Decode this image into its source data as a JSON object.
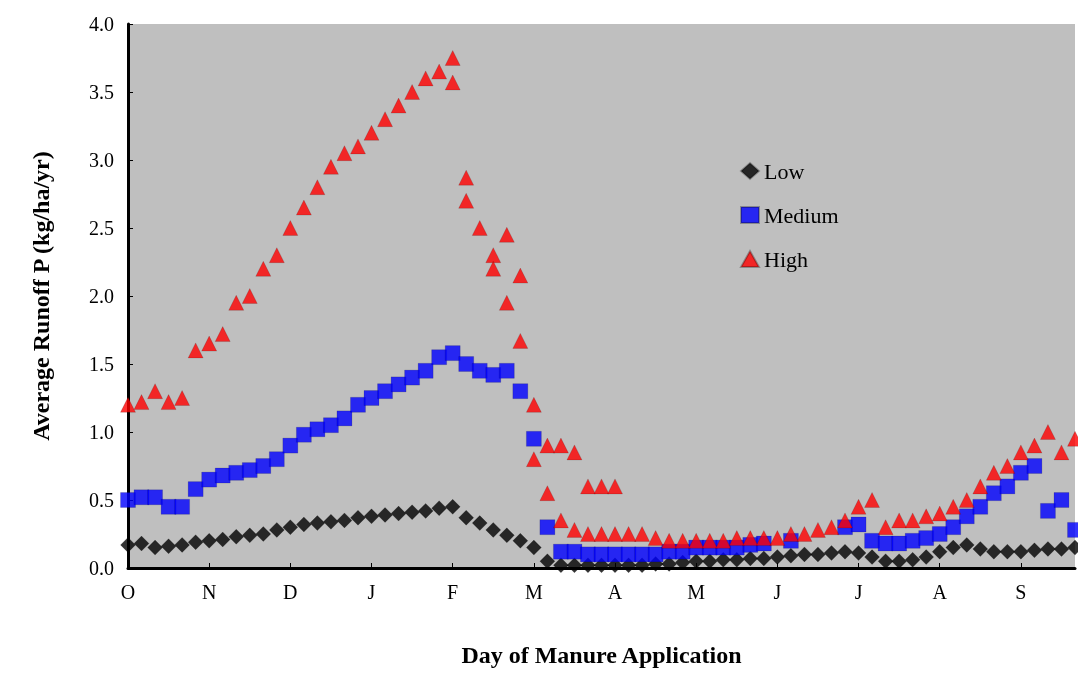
{
  "chart_data": {
    "type": "scatter",
    "xlabel": "Day of Manure Application",
    "ylabel": "Average Runoff P (kg/ha/yr)",
    "categories": [
      "O",
      null,
      null,
      null,
      null,
      null,
      "N",
      null,
      null,
      null,
      null,
      null,
      "D",
      null,
      null,
      null,
      null,
      null,
      "J",
      null,
      null,
      null,
      null,
      null,
      "F",
      null,
      null,
      null,
      null,
      null,
      "M",
      null,
      null,
      null,
      null,
      null,
      "A",
      null,
      null,
      null,
      null,
      null,
      "M",
      null,
      null,
      null,
      null,
      null,
      "J",
      null,
      null,
      null,
      null,
      null,
      "J",
      null,
      null,
      null,
      null,
      null,
      "A",
      null,
      null,
      null,
      null,
      null,
      "S",
      null,
      null,
      null,
      null
    ],
    "ylim": [
      0,
      4
    ],
    "yticks": [
      {
        "value": 0,
        "label": "0.0"
      },
      {
        "value": 0.5,
        "label": "0.5"
      },
      {
        "value": 1,
        "label": "1.0"
      },
      {
        "value": 1.5,
        "label": "1.5"
      },
      {
        "value": 2,
        "label": "2.0"
      },
      {
        "value": 2.5,
        "label": "2.5"
      },
      {
        "value": 3,
        "label": "3.0"
      },
      {
        "value": 3.5,
        "label": "3.5"
      },
      {
        "value": 4,
        "label": "4.0"
      }
    ],
    "grid": false,
    "legend": "right",
    "series": [
      {
        "name": "Low",
        "color": "#000000",
        "marker": "diamond",
        "values": [
          0.17,
          0.18,
          0.15,
          0.16,
          0.17,
          0.19,
          0.2,
          0.21,
          0.23,
          0.24,
          0.25,
          0.28,
          0.3,
          0.32,
          0.33,
          0.34,
          0.35,
          0.37,
          0.38,
          0.39,
          0.4,
          0.41,
          0.42,
          0.44,
          0.45,
          0.37,
          0.33,
          0.28,
          0.24,
          0.2,
          0.15,
          0.05,
          0.02,
          0.02,
          0.02,
          0.02,
          0.02,
          0.02,
          0.02,
          0.03,
          0.03,
          0.04,
          0.05,
          0.05,
          0.06,
          0.06,
          0.07,
          0.07,
          0.08,
          0.09,
          0.1,
          0.1,
          0.11,
          0.12,
          0.11,
          0.08,
          0.05,
          0.05,
          0.06,
          0.08,
          0.12,
          0.15,
          0.17,
          0.14,
          0.12,
          0.12,
          0.12,
          0.13,
          0.14,
          0.14,
          0.15
        ]
      },
      {
        "name": "Medium",
        "color": "#0000ff",
        "marker": "square",
        "values": [
          0.5,
          0.52,
          0.52,
          0.45,
          0.45,
          0.58,
          0.65,
          0.68,
          0.7,
          0.72,
          0.75,
          0.8,
          0.9,
          0.98,
          1.02,
          1.05,
          1.1,
          1.2,
          1.25,
          1.3,
          1.35,
          1.4,
          1.45,
          1.55,
          1.58,
          1.5,
          1.45,
          1.42,
          1.45,
          1.3,
          0.95,
          0.3,
          0.12,
          0.12,
          0.1,
          0.1,
          0.1,
          0.1,
          0.1,
          0.1,
          0.12,
          0.12,
          0.15,
          0.15,
          0.15,
          0.15,
          0.17,
          0.18,
          null,
          0.2,
          null,
          null,
          null,
          0.3,
          0.32,
          0.2,
          0.18,
          0.18,
          0.2,
          0.22,
          0.25,
          0.3,
          0.38,
          0.45,
          0.55,
          0.6,
          0.7,
          0.75,
          0.42,
          0.5,
          0.28
        ]
      },
      {
        "name": "High",
        "color": "#ff0000",
        "marker": "triangle",
        "values": [
          1.2,
          1.22,
          1.3,
          1.22,
          1.25,
          1.6,
          1.65,
          1.72,
          1.95,
          2.0,
          2.2,
          2.3,
          2.5,
          2.65,
          2.8,
          2.95,
          3.05,
          3.1,
          3.2,
          3.3,
          3.4,
          3.5,
          3.6,
          3.65,
          3.75,
          2.7,
          2.5,
          2.3,
          2.45,
          2.15,
          1.2,
          0.9,
          0.9,
          0.85,
          0.6,
          0.6,
          0.6,
          0.25,
          0.25,
          0.22,
          0.2,
          0.2,
          0.2,
          0.2,
          0.2,
          0.22,
          0.22,
          0.22,
          0.22,
          0.25,
          0.25,
          0.28,
          0.3,
          0.35,
          0.45,
          0.5,
          0.3,
          0.35,
          0.35,
          0.38,
          0.4,
          0.45,
          0.5,
          0.6,
          0.7,
          0.75,
          0.85,
          0.9,
          1.0,
          0.85,
          0.95
        ]
      },
      {
        "color": "#ff0000",
        "marker": "triangle",
        "values": [
          null,
          null,
          null,
          null,
          null,
          null,
          null,
          null,
          null,
          null,
          null,
          null,
          null,
          null,
          null,
          null,
          null,
          null,
          null,
          null,
          null,
          null,
          null,
          null,
          3.57,
          2.87,
          null,
          2.2,
          1.95,
          1.67,
          0.8,
          0.55,
          0.35,
          0.28,
          0.25,
          0.25,
          0.25,
          null,
          null,
          null,
          null,
          null,
          null,
          null,
          null,
          null,
          null,
          null,
          null,
          null,
          null,
          null,
          null,
          null,
          null,
          null,
          null,
          null,
          null,
          null,
          null,
          null,
          null,
          null,
          null,
          null,
          null,
          null,
          null,
          null,
          null
        ]
      }
    ]
  }
}
